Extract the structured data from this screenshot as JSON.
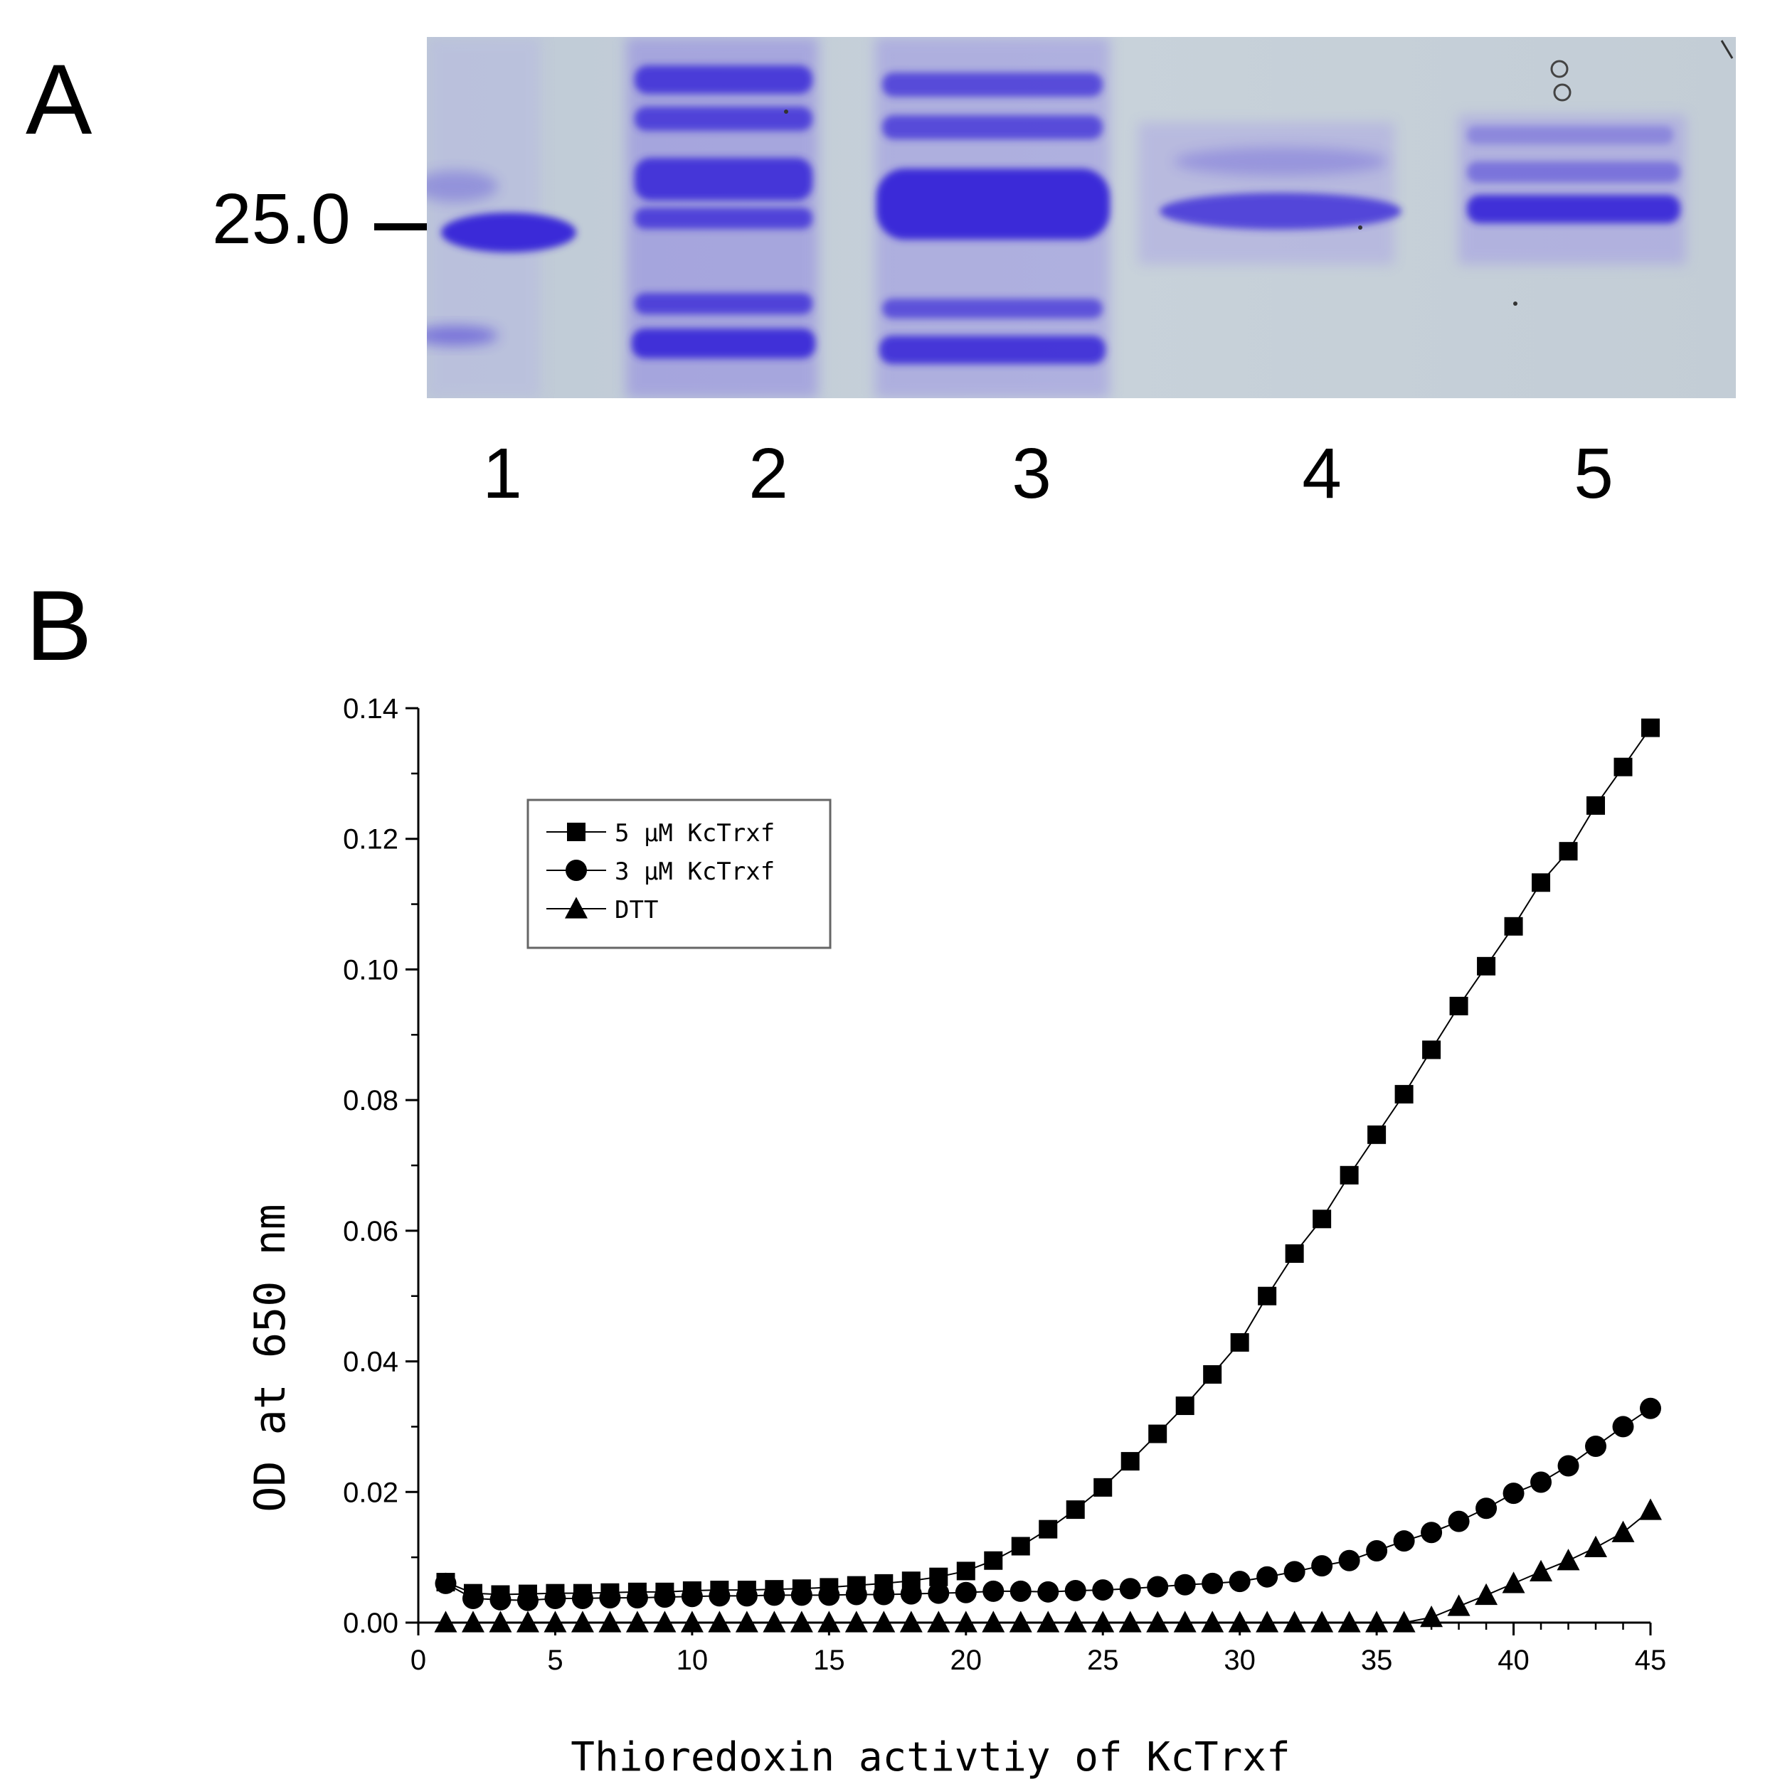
{
  "panels": {
    "a": {
      "label": "A"
    },
    "b": {
      "label": "B"
    }
  },
  "gel": {
    "marker": "25.0",
    "lanes": [
      "1",
      "2",
      "3",
      "4",
      "5"
    ]
  },
  "colors": {
    "gel_background": "#c4cfd8",
    "band": "#3a2bd8",
    "series": "#000000"
  },
  "chart_data": {
    "type": "scatter",
    "title": "",
    "xlabel": "Thioredoxin activtiy of KcTrxf",
    "ylabel": "OD at 650 nm",
    "xlim": [
      0,
      45
    ],
    "ylim": [
      0,
      0.14
    ],
    "xticks": [
      "0",
      "5",
      "10",
      "15",
      "20",
      "25",
      "30",
      "35",
      "40",
      "45"
    ],
    "yticks": [
      "0.00",
      "0.02",
      "0.04",
      "0.06",
      "0.08",
      "0.10",
      "0.12",
      "0.14"
    ],
    "legend_position": "top-left",
    "series": [
      {
        "name": "5 μM KcTrxf",
        "marker": "square",
        "x": [
          1,
          2,
          3,
          4,
          5,
          6,
          7,
          8,
          9,
          10,
          11,
          12,
          13,
          14,
          15,
          16,
          17,
          18,
          19,
          20,
          21,
          22,
          23,
          24,
          25,
          26,
          27,
          28,
          29,
          30,
          31,
          32,
          33,
          34,
          35,
          36,
          37,
          38,
          39,
          40,
          41,
          42,
          43,
          44,
          45
        ],
        "values": [
          0.0062,
          0.0045,
          0.0043,
          0.0044,
          0.0045,
          0.0045,
          0.0046,
          0.0047,
          0.0047,
          0.0049,
          0.005,
          0.005,
          0.0051,
          0.0052,
          0.0054,
          0.0057,
          0.006,
          0.0064,
          0.007,
          0.0079,
          0.0095,
          0.0117,
          0.0143,
          0.0173,
          0.0207,
          0.0247,
          0.0289,
          0.0332,
          0.038,
          0.0429,
          0.05,
          0.0565,
          0.0618,
          0.0685,
          0.0747,
          0.0809,
          0.0877,
          0.0944,
          0.1005,
          0.1066,
          0.1133,
          0.1181,
          0.1251,
          0.131,
          0.137
        ]
      },
      {
        "name": "3 μM KcTrxf",
        "marker": "circle",
        "x": [
          1,
          2,
          3,
          4,
          5,
          6,
          7,
          8,
          9,
          10,
          11,
          12,
          13,
          14,
          15,
          16,
          17,
          18,
          19,
          20,
          21,
          22,
          23,
          24,
          25,
          26,
          27,
          28,
          29,
          30,
          31,
          32,
          33,
          34,
          35,
          36,
          37,
          38,
          39,
          40,
          41,
          42,
          43,
          44,
          45
        ],
        "values": [
          0.006,
          0.0037,
          0.0035,
          0.0034,
          0.0037,
          0.0037,
          0.0038,
          0.0038,
          0.0039,
          0.004,
          0.0041,
          0.0041,
          0.0042,
          0.0042,
          0.0042,
          0.0043,
          0.0043,
          0.0044,
          0.0045,
          0.0046,
          0.0048,
          0.0048,
          0.0047,
          0.0049,
          0.005,
          0.0052,
          0.0055,
          0.0058,
          0.006,
          0.0063,
          0.007,
          0.0078,
          0.0087,
          0.0095,
          0.011,
          0.0125,
          0.0138,
          0.0155,
          0.0175,
          0.0198,
          0.0215,
          0.024,
          0.027,
          0.03,
          0.0328
        ]
      },
      {
        "name": "DTT",
        "marker": "triangle",
        "x": [
          1,
          2,
          3,
          4,
          5,
          6,
          7,
          8,
          9,
          10,
          11,
          12,
          13,
          14,
          15,
          16,
          17,
          18,
          19,
          20,
          21,
          22,
          23,
          24,
          25,
          26,
          27,
          28,
          29,
          30,
          31,
          32,
          33,
          34,
          35,
          36,
          37,
          38,
          39,
          40,
          41,
          42,
          43,
          44,
          45
        ],
        "values": [
          0,
          0,
          0,
          0,
          0,
          0,
          0,
          0,
          0,
          0,
          0,
          0,
          0,
          0,
          0,
          0,
          0,
          0,
          0,
          0,
          0,
          0,
          0,
          0,
          0,
          0,
          0,
          0,
          0,
          0,
          0,
          0,
          0,
          0,
          0,
          0,
          0.0008,
          0.0025,
          0.0042,
          0.006,
          0.0078,
          0.0095,
          0.0115,
          0.0138,
          0.0172
        ]
      }
    ]
  }
}
